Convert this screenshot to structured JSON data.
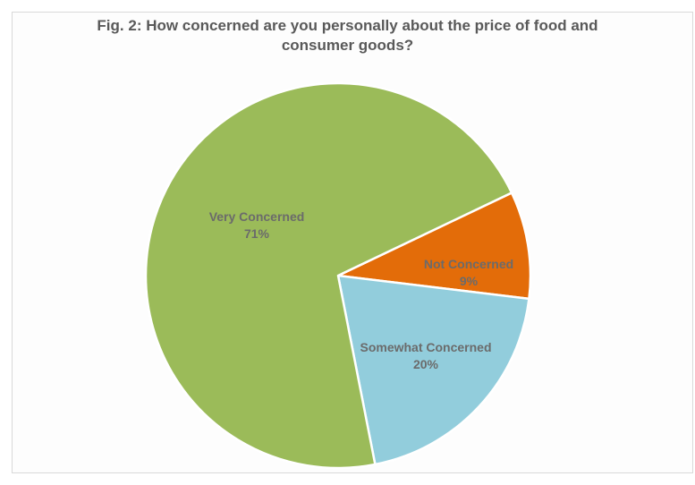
{
  "chart_data": {
    "type": "pie",
    "title": "Fig. 2: How concerned are you personally about the price of food and consumer goods?",
    "title_lines": [
      "Fig. 2: How concerned are you personally about the price of food and",
      "consumer goods?"
    ],
    "categories": [
      "Not Concerned",
      "Somewhat Concerned",
      "Very Concerned"
    ],
    "values": [
      9,
      20,
      71
    ],
    "value_labels": [
      "9%",
      "20%",
      "71%"
    ],
    "colors": [
      "#E36C09",
      "#92CDDC",
      "#9BBB59"
    ],
    "legend": "none",
    "data_labels": "inside"
  },
  "labels": {
    "not": {
      "name": "Not Concerned",
      "pct": "9%"
    },
    "some": {
      "name": "Somewhat Concerned",
      "pct": "20%"
    },
    "very": {
      "name": "Very Concerned",
      "pct": "71%"
    }
  }
}
